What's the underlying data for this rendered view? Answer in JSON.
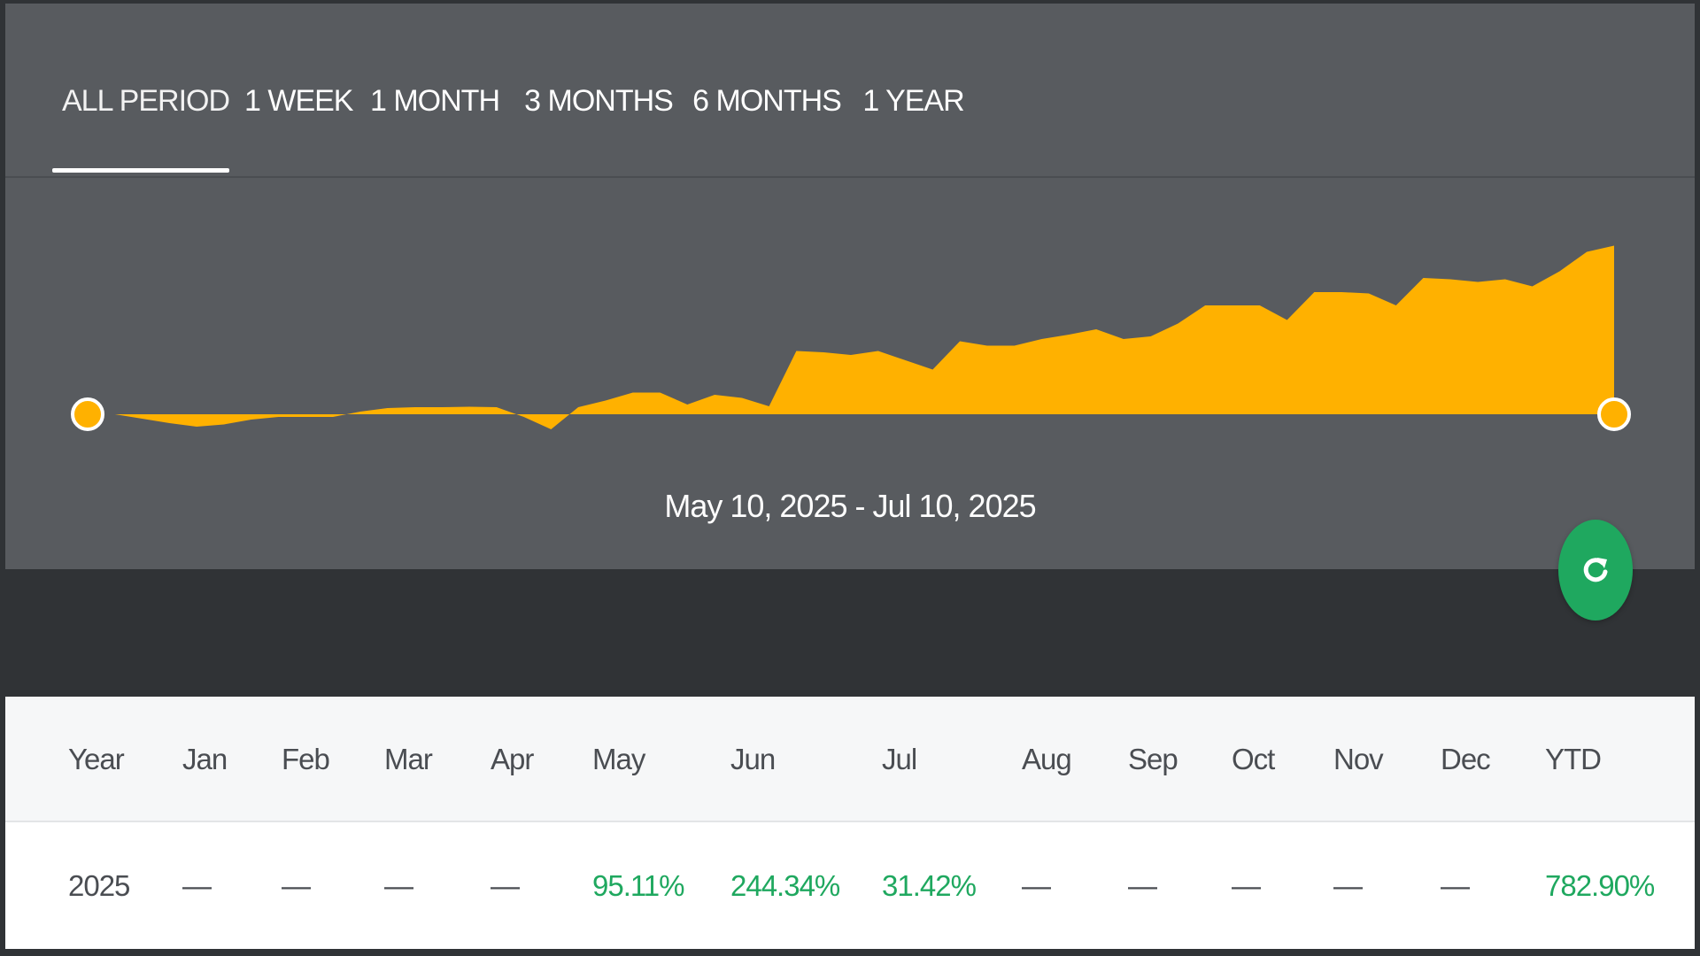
{
  "tabs": [
    {
      "label": "ALL PERIOD",
      "active": true
    },
    {
      "label": "1 WEEK",
      "active": false
    },
    {
      "label": "1 MONTH",
      "active": false
    },
    {
      "label": "3 MONTHS",
      "active": false
    },
    {
      "label": "6 MONTHS",
      "active": false
    },
    {
      "label": "1 YEAR",
      "active": false
    }
  ],
  "chart": {
    "date_range": "May 10, 2025 - Jul 10, 2025",
    "fill_color": "#ffb100"
  },
  "chart_data": {
    "type": "area",
    "title": "",
    "xlabel": "",
    "ylabel": "",
    "start": "May 10, 2025",
    "end": "Jul 10, 2025",
    "values": [
      0,
      0,
      -1,
      -2,
      -2.8,
      -2.3,
      -1.2,
      -0.6,
      -0.6,
      -0.6,
      0.6,
      1.4,
      1.6,
      1.6,
      1.7,
      1.6,
      -0.6,
      -3.4,
      1.6,
      3.1,
      4.9,
      4.9,
      2.2,
      4.4,
      3.7,
      1.8,
      14.3,
      14,
      13.4,
      14.3,
      12.2,
      10.1,
      16.5,
      15.5,
      15.5,
      17,
      18,
      19.2,
      17,
      17.6,
      20.5,
      24.6,
      24.6,
      24.6,
      21.3,
      27.6,
      27.6,
      27.3,
      24.6,
      30.8,
      30.5,
      29.9,
      30.5,
      28.9,
      32.3,
      36.7,
      38.1
    ],
    "colors": {
      "fill": "#ffb100",
      "handle": "#ffb100"
    },
    "grid": false,
    "legend": "none"
  },
  "refresh_button": {
    "icon": "refresh-icon",
    "color": "#1fa85f"
  },
  "table": {
    "headers": [
      "Year",
      "Jan",
      "Feb",
      "Mar",
      "Apr",
      "May",
      "Jun",
      "Jul",
      "Aug",
      "Sep",
      "Oct",
      "Nov",
      "Dec",
      "YTD"
    ],
    "rows": [
      [
        "2025",
        "—",
        "—",
        "—",
        "—",
        "95.11%",
        "244.34%",
        "31.42%",
        "—",
        "—",
        "—",
        "—",
        "—",
        "782.90%"
      ]
    ],
    "positive_color": "#1fa85f"
  }
}
